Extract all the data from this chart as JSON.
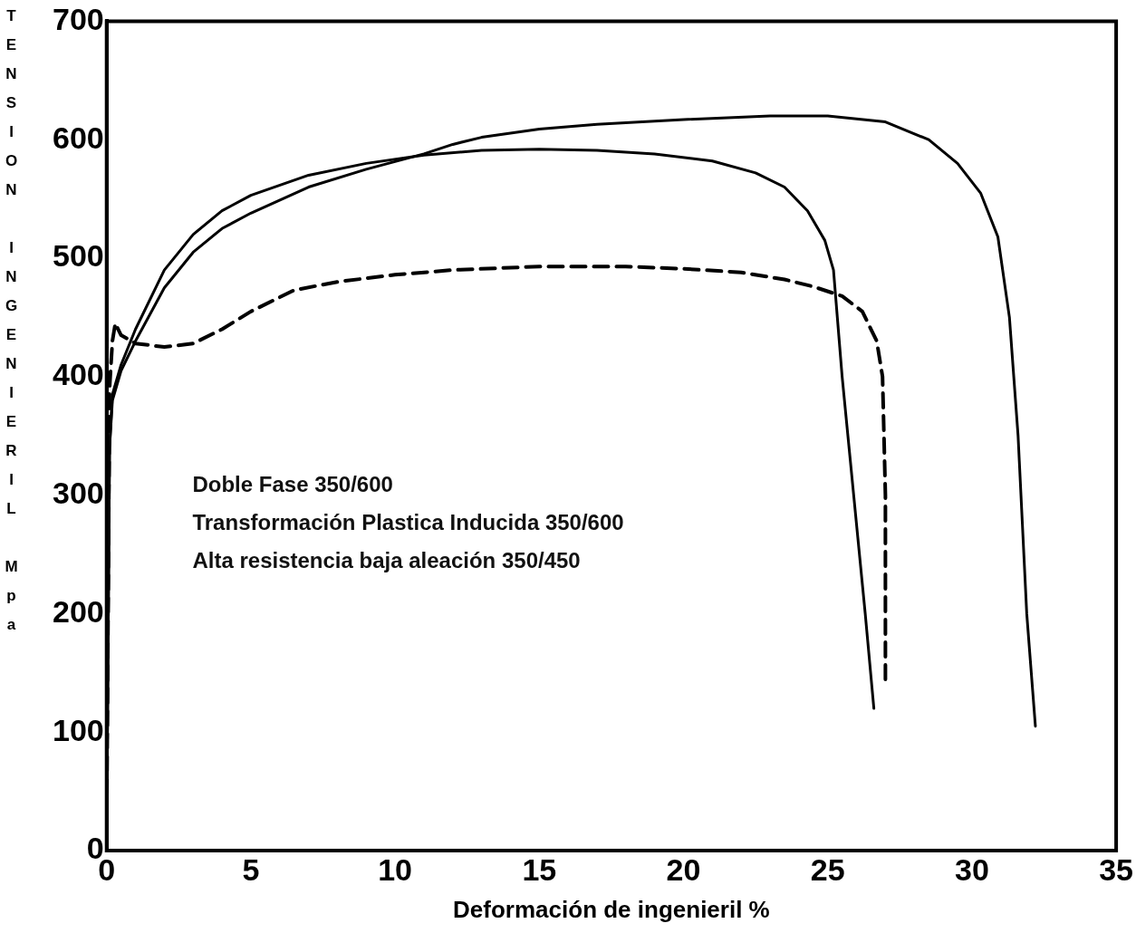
{
  "chart_data": {
    "type": "line",
    "xlabel": "Deformación de ingenieril %",
    "ylabel": "TENSION INGENIERIL Mpa",
    "xlim": [
      0,
      35
    ],
    "ylim": [
      0,
      700
    ],
    "xticks": [
      0,
      5,
      10,
      15,
      20,
      25,
      30,
      35
    ],
    "yticks": [
      0,
      100,
      200,
      300,
      400,
      500,
      600,
      700
    ],
    "grid": false,
    "legend": false,
    "marker": "none",
    "annotations": [
      "Doble Fase 350/600",
      "Transformación Plastica Inducida 350/600",
      "Alta resistencia baja aleación 350/450"
    ],
    "series": [
      {
        "color": "#000000",
        "line_style": "solid",
        "x": [
          0,
          0.1,
          0.2,
          0.5,
          1,
          2,
          3,
          4,
          5,
          7,
          9,
          11,
          13,
          15,
          17,
          19,
          21,
          22.5,
          23.5,
          24.3,
          24.9,
          25.2,
          25.5,
          25.9,
          26.3,
          26.6
        ],
        "values": [
          10,
          340,
          385,
          410,
          440,
          490,
          520,
          540,
          553,
          570,
          580,
          587,
          591,
          592,
          591,
          588,
          582,
          572,
          560,
          540,
          515,
          490,
          400,
          300,
          200,
          120
        ]
      },
      {
        "color": "#000000",
        "line_style": "solid",
        "x": [
          0,
          0.1,
          0.2,
          0.5,
          1,
          2,
          3,
          4,
          5,
          7,
          9,
          11,
          12,
          13,
          15,
          17,
          20,
          23,
          25,
          27,
          28.5,
          29.5,
          30.3,
          30.9,
          31.3,
          31.6,
          31.9,
          32.2
        ],
        "values": [
          10,
          340,
          380,
          405,
          430,
          475,
          505,
          525,
          538,
          560,
          575,
          588,
          596,
          602,
          609,
          613,
          617,
          620,
          620,
          615,
          600,
          580,
          555,
          518,
          450,
          350,
          200,
          105
        ]
      },
      {
        "color": "#000000",
        "line_style": "dashed",
        "x": [
          0,
          0.1,
          0.2,
          0.3,
          0.5,
          1,
          2,
          3,
          4,
          5,
          6.5,
          8,
          10,
          12,
          15,
          18,
          20,
          22,
          23.5,
          24.5,
          25.5,
          26.2,
          26.7,
          26.9,
          27,
          27,
          27
        ],
        "values": [
          10,
          390,
          430,
          445,
          435,
          428,
          425,
          428,
          440,
          455,
          473,
          480,
          486,
          490,
          493,
          493,
          491,
          488,
          482,
          476,
          468,
          455,
          430,
          400,
          300,
          200,
          140
        ]
      }
    ]
  }
}
